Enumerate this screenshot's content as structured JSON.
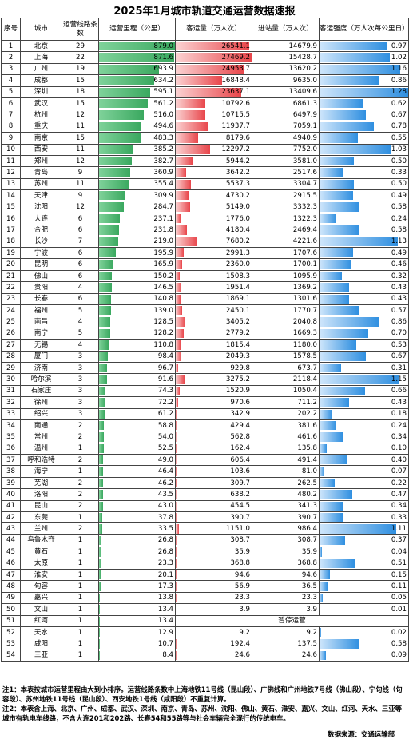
{
  "title": "2025年1月城市轨道交通运营数据速报",
  "headers": {
    "rank": "序号",
    "city": "城市",
    "lines": "运营线路条数",
    "mileage": "运营里程（公里）",
    "ridership": "客运量（万人次）",
    "entries": "进站量（万人次）",
    "intensity": "客运强度（万人次每公里日）"
  },
  "chart_data": {
    "type": "table",
    "columns": [
      "序号",
      "城市",
      "运营线路条数",
      "运营里程（公里）",
      "客运量（万人次）",
      "进站量（万人次）",
      "客运强度（万人次每公里日）"
    ],
    "rows": [
      {
        "rank": "1",
        "city": "北京",
        "lines": "29",
        "mileage": "879.0",
        "ridership": "26541.1",
        "entries": "14679.9",
        "intensity": "0.97"
      },
      {
        "rank": "2",
        "city": "上海",
        "lines": "22",
        "mileage": "871.6",
        "ridership": "27469.2",
        "entries": "15428.7",
        "intensity": "1.02"
      },
      {
        "rank": "3",
        "city": "广州",
        "lines": "19",
        "mileage": "693.9",
        "ridership": "24953.7",
        "entries": "13620.2",
        "intensity": "1.16"
      },
      {
        "rank": "4",
        "city": "成都",
        "lines": "15",
        "mileage": "634.2",
        "ridership": "16848.4",
        "entries": "9635.0",
        "intensity": "0.86"
      },
      {
        "rank": "5",
        "city": "深圳",
        "lines": "18",
        "mileage": "595.1",
        "ridership": "23637.1",
        "entries": "13409.6",
        "intensity": "1.28"
      },
      {
        "rank": "6",
        "city": "武汉",
        "lines": "15",
        "mileage": "561.2",
        "ridership": "10792.6",
        "entries": "6861.3",
        "intensity": "0.62"
      },
      {
        "rank": "7",
        "city": "杭州",
        "lines": "12",
        "mileage": "516.0",
        "ridership": "10715.5",
        "entries": "6497.9",
        "intensity": "0.67"
      },
      {
        "rank": "8",
        "city": "重庆",
        "lines": "11",
        "mileage": "494.6",
        "ridership": "11937.7",
        "entries": "7059.1",
        "intensity": "0.78"
      },
      {
        "rank": "9",
        "city": "南京",
        "lines": "15",
        "mileage": "483.3",
        "ridership": "8179.6",
        "entries": "4940.9",
        "intensity": "0.55"
      },
      {
        "rank": "10",
        "city": "西安",
        "lines": "11",
        "mileage": "385.2",
        "ridership": "12297.2",
        "entries": "7752.0",
        "intensity": "1.03"
      },
      {
        "rank": "11",
        "city": "郑州",
        "lines": "12",
        "mileage": "382.7",
        "ridership": "5944.2",
        "entries": "3581.0",
        "intensity": "0.50"
      },
      {
        "rank": "12",
        "city": "青岛",
        "lines": "9",
        "mileage": "360.9",
        "ridership": "3642.2",
        "entries": "2517.6",
        "intensity": "0.33"
      },
      {
        "rank": "13",
        "city": "苏州",
        "lines": "11",
        "mileage": "355.4",
        "ridership": "5537.3",
        "entries": "3304.7",
        "intensity": "0.50"
      },
      {
        "rank": "14",
        "city": "天津",
        "lines": "9",
        "mileage": "309.9",
        "ridership": "4730.2",
        "entries": "2915.5",
        "intensity": "0.49"
      },
      {
        "rank": "15",
        "city": "沈阳",
        "lines": "12",
        "mileage": "284.7",
        "ridership": "5149.0",
        "entries": "3332.3",
        "intensity": "0.58"
      },
      {
        "rank": "16",
        "city": "大连",
        "lines": "6",
        "mileage": "237.1",
        "ridership": "1776.0",
        "entries": "1322.3",
        "intensity": "0.24"
      },
      {
        "rank": "17",
        "city": "合肥",
        "lines": "6",
        "mileage": "231.8",
        "ridership": "4180.4",
        "entries": "2469.4",
        "intensity": "0.58"
      },
      {
        "rank": "18",
        "city": "长沙",
        "lines": "7",
        "mileage": "219.0",
        "ridership": "7680.2",
        "entries": "4221.6",
        "intensity": "1.13"
      },
      {
        "rank": "19",
        "city": "宁波",
        "lines": "6",
        "mileage": "195.9",
        "ridership": "2991.3",
        "entries": "1707.6",
        "intensity": "0.49"
      },
      {
        "rank": "20",
        "city": "昆明",
        "lines": "6",
        "mileage": "165.9",
        "ridership": "2360.0",
        "entries": "1700.1",
        "intensity": "0.46"
      },
      {
        "rank": "21",
        "city": "佛山",
        "lines": "6",
        "mileage": "150.2",
        "ridership": "1508.3",
        "entries": "1095.9",
        "intensity": "0.32"
      },
      {
        "rank": "22",
        "city": "贵阳",
        "lines": "4",
        "mileage": "146.5",
        "ridership": "1951.4",
        "entries": "1369.2",
        "intensity": "0.43"
      },
      {
        "rank": "23",
        "city": "长春",
        "lines": "6",
        "mileage": "140.8",
        "ridership": "1869.1",
        "entries": "1301.6",
        "intensity": "0.43"
      },
      {
        "rank": "24",
        "city": "福州",
        "lines": "5",
        "mileage": "139.0",
        "ridership": "2450.1",
        "entries": "1770.7",
        "intensity": "0.57"
      },
      {
        "rank": "25",
        "city": "南昌",
        "lines": "4",
        "mileage": "128.5",
        "ridership": "3405.2",
        "entries": "2040.8",
        "intensity": "0.86"
      },
      {
        "rank": "26",
        "city": "南宁",
        "lines": "5",
        "mileage": "128.2",
        "ridership": "2779.2",
        "entries": "1669.3",
        "intensity": "0.70"
      },
      {
        "rank": "27",
        "city": "无锡",
        "lines": "4",
        "mileage": "110.8",
        "ridership": "1815.4",
        "entries": "1180.0",
        "intensity": "0.53"
      },
      {
        "rank": "28",
        "city": "厦门",
        "lines": "3",
        "mileage": "98.4",
        "ridership": "2049.3",
        "entries": "1578.5",
        "intensity": "0.67"
      },
      {
        "rank": "29",
        "city": "济南",
        "lines": "3",
        "mileage": "96.7",
        "ridership": "929.8",
        "entries": "673.7",
        "intensity": "0.31"
      },
      {
        "rank": "30",
        "city": "哈尔滨",
        "lines": "3",
        "mileage": "91.6",
        "ridership": "3275.2",
        "entries": "2118.4",
        "intensity": "1.15"
      },
      {
        "rank": "31",
        "city": "石家庄",
        "lines": "3",
        "mileage": "74.3",
        "ridership": "1520.9",
        "entries": "1050.4",
        "intensity": "0.66"
      },
      {
        "rank": "32",
        "city": "徐州",
        "lines": "3",
        "mileage": "72.2",
        "ridership": "970.6",
        "entries": "711.2",
        "intensity": "0.43"
      },
      {
        "rank": "33",
        "city": "绍兴",
        "lines": "3",
        "mileage": "61.2",
        "ridership": "342.9",
        "entries": "202.2",
        "intensity": "0.18"
      },
      {
        "rank": "34",
        "city": "南通",
        "lines": "2",
        "mileage": "58.8",
        "ridership": "429.4",
        "entries": "381.6",
        "intensity": "0.24"
      },
      {
        "rank": "35",
        "city": "常州",
        "lines": "2",
        "mileage": "54.0",
        "ridership": "562.8",
        "entries": "461.6",
        "intensity": "0.34"
      },
      {
        "rank": "36",
        "city": "温州",
        "lines": "1",
        "mileage": "52.5",
        "ridership": "162.4",
        "entries": "135.8",
        "intensity": "0.10"
      },
      {
        "rank": "37",
        "city": "呼和浩特",
        "lines": "2",
        "mileage": "49.0",
        "ridership": "606.4",
        "entries": "491.4",
        "intensity": "0.40"
      },
      {
        "rank": "38",
        "city": "海宁",
        "lines": "1",
        "mileage": "46.4",
        "ridership": "103.6",
        "entries": "81.0",
        "intensity": "0.07"
      },
      {
        "rank": "39",
        "city": "芜湖",
        "lines": "2",
        "mileage": "46.2",
        "ridership": "309.7",
        "entries": "262.5",
        "intensity": "0.22"
      },
      {
        "rank": "40",
        "city": "洛阳",
        "lines": "2",
        "mileage": "43.5",
        "ridership": "638.2",
        "entries": "480.2",
        "intensity": "0.47"
      },
      {
        "rank": "41",
        "city": "昆山",
        "lines": "2",
        "mileage": "43.0",
        "ridership": "454.5",
        "entries": "341.3",
        "intensity": "0.34"
      },
      {
        "rank": "42",
        "city": "东莞",
        "lines": "1",
        "mileage": "37.8",
        "ridership": "390.7",
        "entries": "390.7",
        "intensity": "0.33"
      },
      {
        "rank": "43",
        "city": "兰州",
        "lines": "2",
        "mileage": "33.5",
        "ridership": "1151.0",
        "entries": "986.4",
        "intensity": "1.11"
      },
      {
        "rank": "44",
        "city": "乌鲁木齐",
        "lines": "1",
        "mileage": "26.8",
        "ridership": "308.7",
        "entries": "308.7",
        "intensity": "0.37"
      },
      {
        "rank": "45",
        "city": "黄石",
        "lines": "1",
        "mileage": "26.8",
        "ridership": "35.9",
        "entries": "35.9",
        "intensity": "0.04"
      },
      {
        "rank": "46",
        "city": "太原",
        "lines": "1",
        "mileage": "23.3",
        "ridership": "368.8",
        "entries": "368.8",
        "intensity": "0.51"
      },
      {
        "rank": "47",
        "city": "淮安",
        "lines": "1",
        "mileage": "20.1",
        "ridership": "94.6",
        "entries": "94.6",
        "intensity": "0.15"
      },
      {
        "rank": "48",
        "city": "句容",
        "lines": "1",
        "mileage": "17.3",
        "ridership": "56.9",
        "entries": "36.5",
        "intensity": "0.11"
      },
      {
        "rank": "49",
        "city": "嘉兴",
        "lines": "1",
        "mileage": "13.8",
        "ridership": "23.3",
        "entries": "23.3",
        "intensity": "0.05"
      },
      {
        "rank": "50",
        "city": "文山",
        "lines": "1",
        "mileage": "13.4",
        "ridership": "3.9",
        "entries": "3.9",
        "intensity": "0.01"
      },
      {
        "rank": "51",
        "city": "红河",
        "lines": "1",
        "mileage": "13.4",
        "suspended": "暂停运营"
      },
      {
        "rank": "52",
        "city": "天水",
        "lines": "1",
        "mileage": "12.9",
        "ridership": "9.2",
        "entries": "9.2",
        "intensity": "0.02"
      },
      {
        "rank": "53",
        "city": "咸阳",
        "lines": "1",
        "mileage": "10.7",
        "ridership": "192.4",
        "entries": "137.5",
        "intensity": "0.58"
      },
      {
        "rank": "54",
        "city": "三亚",
        "lines": "1",
        "mileage": "8.4",
        "ridership": "24.6",
        "entries": "24.6",
        "intensity": "0.09"
      }
    ],
    "scales": {
      "mileage_max": 879.0,
      "ridership_max": 27469.2,
      "intensity_max": 1.28
    }
  },
  "notes": {
    "note1": "注1：本表按城市运营里程由大到小排序。运营线路条数中上海地铁11号线（昆山段）、广佛线和广州地铁7号线（佛山段）、宁句线（句容段）、苏州地铁11号线（昆山段）、西安地铁1号线（咸阳段）不重复计算。",
    "note2": "注2：本表含上海、北京、广州、成都、武汉、深圳、南京、青岛、苏州、沈阳、佛山、黄石、淮安、嘉兴、文山、红河、天水、三亚等城市有轨电车线路，不含大连201和202路、长春54和55路等与社会车辆完全混行的传统电车。"
  },
  "source": "数据来源：交通运输部",
  "colors": {
    "mileage": "#3aa85f",
    "ridership": "#e8454a",
    "intensity": "#2f8fe0"
  }
}
